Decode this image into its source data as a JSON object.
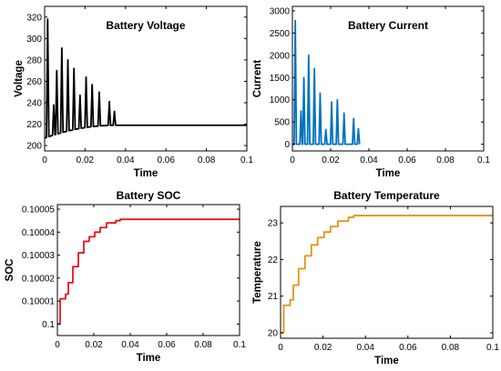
{
  "figure": {
    "background": "#ffffff"
  },
  "chart_data": [
    {
      "type": "line",
      "title": "Battery Voltage",
      "title_placement": "inside-top",
      "xlabel": "Time",
      "ylabel": "Voltage",
      "xlim": [
        0,
        0.1
      ],
      "ylim": [
        195,
        330
      ],
      "xticks": [
        0,
        0.02,
        0.04,
        0.06,
        0.08,
        0.1
      ],
      "xtick_labels": [
        "0",
        "0.02",
        "0.04",
        "0.06",
        "0.08",
        "0.1"
      ],
      "yticks": [
        200,
        220,
        240,
        260,
        280,
        300,
        320
      ],
      "ytick_labels": [
        "200",
        "220",
        "240",
        "260",
        "280",
        "300",
        "320"
      ],
      "grid": false,
      "color": "#000000",
      "baseline_start": 207,
      "baseline_end": 219,
      "settle_time": 0.035,
      "pulse_width": 0.0012,
      "pulses": [
        {
          "t": 0.0015,
          "v": 318
        },
        {
          "t": 0.0045,
          "v": 238
        },
        {
          "t": 0.006,
          "v": 270
        },
        {
          "t": 0.0085,
          "v": 291
        },
        {
          "t": 0.0115,
          "v": 280
        },
        {
          "t": 0.0145,
          "v": 272
        },
        {
          "t": 0.0175,
          "v": 247
        },
        {
          "t": 0.0205,
          "v": 264
        },
        {
          "t": 0.0235,
          "v": 257
        },
        {
          "t": 0.027,
          "v": 250
        },
        {
          "t": 0.032,
          "v": 241
        },
        {
          "t": 0.0345,
          "v": 232
        }
      ]
    },
    {
      "type": "line",
      "title": "Battery Current",
      "title_placement": "inside-top",
      "xlabel": "Time",
      "ylabel": "Current",
      "xlim": [
        0,
        0.1
      ],
      "ylim": [
        -150,
        3100
      ],
      "xticks": [
        0,
        0.02,
        0.04,
        0.06,
        0.08,
        0.1
      ],
      "xtick_labels": [
        "0",
        "0.02",
        "0.04",
        "0.06",
        "0.08",
        "0.1"
      ],
      "yticks": [
        0,
        500,
        1000,
        1500,
        2000,
        2500,
        3000
      ],
      "ytick_labels": [
        "0",
        "500",
        "1000",
        "1500",
        "2000",
        "2500",
        "3000"
      ],
      "grid": false,
      "color": "#0072BD",
      "baseline": 0,
      "pulse_width": 0.0012,
      "pulses": [
        {
          "t": 0.0015,
          "v": 2780
        },
        {
          "t": 0.0045,
          "v": 750
        },
        {
          "t": 0.006,
          "v": 1500
        },
        {
          "t": 0.0085,
          "v": 2000
        },
        {
          "t": 0.0115,
          "v": 1700
        },
        {
          "t": 0.0145,
          "v": 1150
        },
        {
          "t": 0.0175,
          "v": 330
        },
        {
          "t": 0.0205,
          "v": 950
        },
        {
          "t": 0.0235,
          "v": 1000
        },
        {
          "t": 0.027,
          "v": 700
        },
        {
          "t": 0.032,
          "v": 580
        },
        {
          "t": 0.0345,
          "v": 350
        }
      ]
    },
    {
      "type": "line",
      "title": "Battery SOC",
      "title_placement": "above",
      "xlabel": "Time",
      "ylabel": "SOC",
      "xlim": [
        0,
        0.1
      ],
      "ylim": [
        0.099995,
        0.100052
      ],
      "xticks": [
        0,
        0.02,
        0.04,
        0.06,
        0.08,
        0.1
      ],
      "xtick_labels": [
        "0",
        "0.02",
        "0.04",
        "0.06",
        "0.08",
        "0.1"
      ],
      "yticks": [
        0.1,
        0.10001,
        0.10002,
        0.10003,
        0.10004,
        0.10005
      ],
      "ytick_labels": [
        "0.1",
        "0.10001",
        "0.10002",
        "0.10003",
        "0.10004",
        "0.10005"
      ],
      "grid": false,
      "color": "#E8141B",
      "steps": [
        {
          "x": 0,
          "y": 0.1
        },
        {
          "x": 0.0015,
          "y": 0.100011
        },
        {
          "x": 0.0045,
          "y": 0.100013
        },
        {
          "x": 0.006,
          "y": 0.100018
        },
        {
          "x": 0.0085,
          "y": 0.100025
        },
        {
          "x": 0.0115,
          "y": 0.100031
        },
        {
          "x": 0.0145,
          "y": 0.100036
        },
        {
          "x": 0.0175,
          "y": 0.100038
        },
        {
          "x": 0.0205,
          "y": 0.10004
        },
        {
          "x": 0.0235,
          "y": 0.100042
        },
        {
          "x": 0.027,
          "y": 0.100044
        },
        {
          "x": 0.032,
          "y": 0.100045
        },
        {
          "x": 0.0345,
          "y": 0.1000456
        },
        {
          "x": 0.1,
          "y": 0.1000456
        }
      ]
    },
    {
      "type": "line",
      "title": "Battery Temperature",
      "title_placement": "above",
      "xlabel": "Time",
      "ylabel": "Temperature",
      "xlim": [
        0,
        0.1
      ],
      "ylim": [
        19.85,
        23.45
      ],
      "xticks": [
        0,
        0.02,
        0.04,
        0.06,
        0.08,
        0.1
      ],
      "xtick_labels": [
        "0",
        "0.02",
        "0.04",
        "0.06",
        "0.08",
        "0.1"
      ],
      "yticks": [
        20,
        21,
        22,
        23
      ],
      "ytick_labels": [
        "20",
        "21",
        "22",
        "23"
      ],
      "grid": false,
      "color": "#E8920F",
      "steps": [
        {
          "x": 0,
          "y": 20
        },
        {
          "x": 0.0015,
          "y": 20.75
        },
        {
          "x": 0.0045,
          "y": 20.9
        },
        {
          "x": 0.006,
          "y": 21.3
        },
        {
          "x": 0.0085,
          "y": 21.75
        },
        {
          "x": 0.0115,
          "y": 22.1
        },
        {
          "x": 0.0145,
          "y": 22.4
        },
        {
          "x": 0.0175,
          "y": 22.6
        },
        {
          "x": 0.0205,
          "y": 22.75
        },
        {
          "x": 0.0235,
          "y": 22.9
        },
        {
          "x": 0.027,
          "y": 23.05
        },
        {
          "x": 0.032,
          "y": 23.15
        },
        {
          "x": 0.0345,
          "y": 23.2
        },
        {
          "x": 0.1,
          "y": 23.2
        }
      ]
    }
  ]
}
